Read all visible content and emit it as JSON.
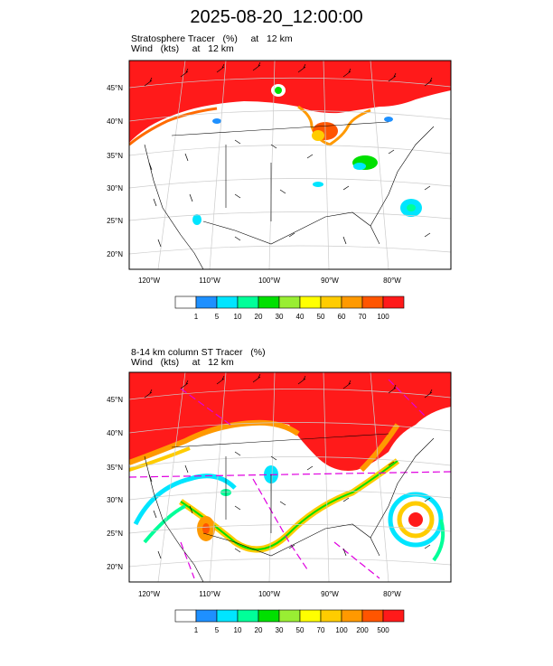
{
  "title": "2025-08-20_12:00:00",
  "panels": [
    {
      "line1": "Stratosphere Tracer   (%)     at   12 km",
      "line2": "Wind   (kts)     at   12 km",
      "lat_labels": [
        "45°N",
        "40°N",
        "35°N",
        "30°N",
        "25°N",
        "20°N"
      ],
      "lon_labels": [
        "120°W",
        "110°W",
        "100°W",
        "90°W",
        "80°W"
      ],
      "colorbar": {
        "colors": [
          "#ffffff",
          "#1e90ff",
          "#00e5ff",
          "#00ff99",
          "#00e000",
          "#99ee33",
          "#ffff00",
          "#ffcc00",
          "#ff9900",
          "#ff5500",
          "#ff1a1a"
        ],
        "labels": [
          "1",
          "5",
          "10",
          "20",
          "30",
          "40",
          "50",
          "60",
          "70",
          "100"
        ]
      }
    },
    {
      "line1": "8-14 km column ST Tracer   (%)",
      "line2": "Wind   (kts)     at   12 km",
      "lat_labels": [
        "45°N",
        "40°N",
        "35°N",
        "30°N",
        "25°N",
        "20°N"
      ],
      "lon_labels": [
        "120°W",
        "110°W",
        "100°W",
        "90°W",
        "80°W"
      ],
      "colorbar": {
        "colors": [
          "#ffffff",
          "#1e90ff",
          "#00e5ff",
          "#00ff99",
          "#00e000",
          "#99ee33",
          "#ffff00",
          "#ffcc00",
          "#ff9900",
          "#ff5500",
          "#ff1a1a"
        ],
        "labels": [
          "1",
          "5",
          "10",
          "20",
          "30",
          "50",
          "70",
          "100",
          "200",
          "500"
        ]
      }
    }
  ]
}
